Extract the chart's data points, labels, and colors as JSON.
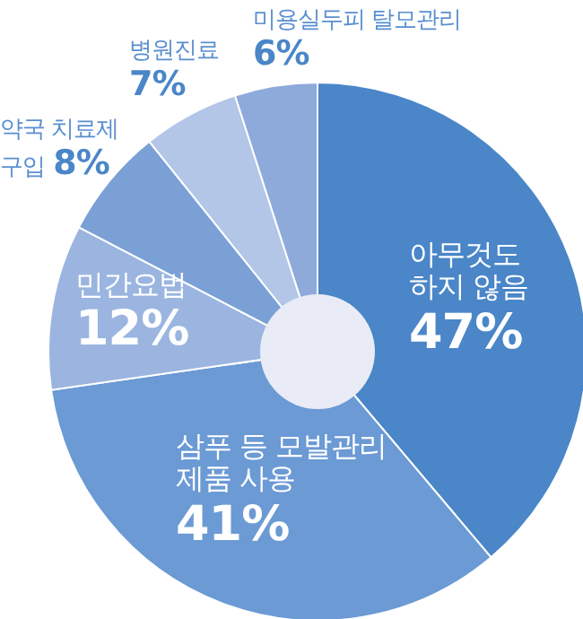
{
  "chart_data": {
    "type": "donut",
    "categories": [
      "아무것도 하지 않음",
      "삼푸 등 모발관리 제품 사용",
      "민간요법",
      "약국 치료제 구입",
      "병원진료",
      "미용실두피 탈모관리"
    ],
    "values": [
      47,
      41,
      12,
      8,
      7,
      6
    ],
    "value_labels": [
      "47%",
      "41%",
      "12%",
      "8%",
      "7%",
      "6%"
    ],
    "colors": [
      "#4a86c8",
      "#6b9ad4",
      "#9bb5e0",
      "#7ba0d6",
      "#b3c6e8",
      "#8eaadb"
    ]
  }
}
